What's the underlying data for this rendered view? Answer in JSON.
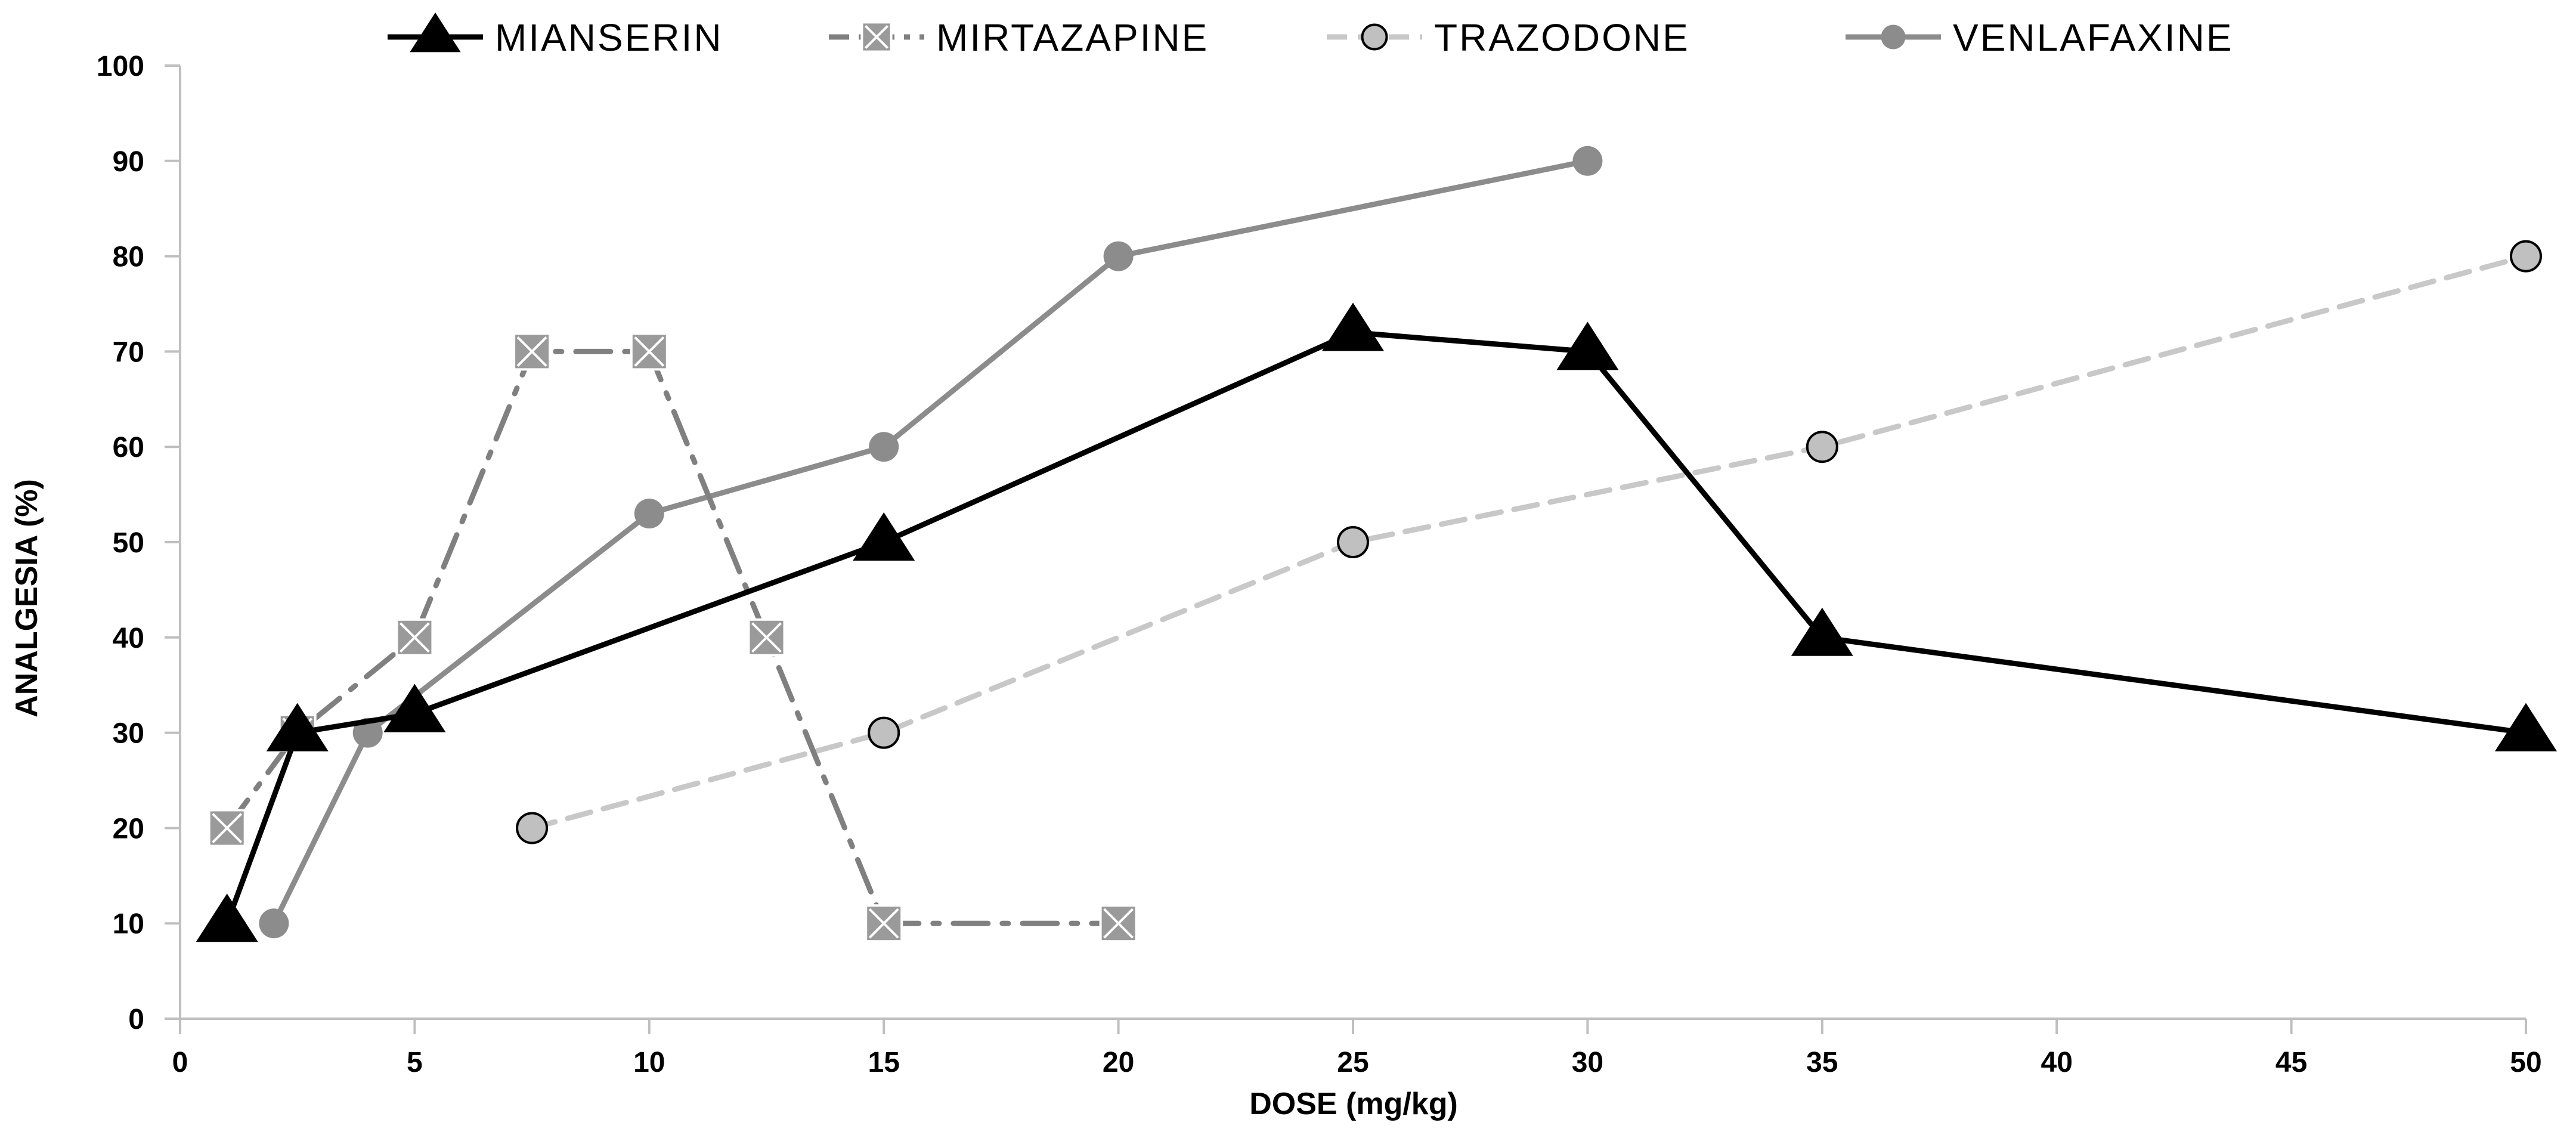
{
  "chart_data": {
    "type": "line",
    "title": "",
    "xlabel": "DOSE (mg/kg)",
    "ylabel": "ANALGESIA (%)",
    "xlim": [
      0,
      50
    ],
    "ylim": [
      0,
      100
    ],
    "x_ticks": [
      0,
      5,
      10,
      15,
      20,
      25,
      30,
      35,
      40,
      45,
      50
    ],
    "y_ticks": [
      0,
      10,
      20,
      30,
      40,
      50,
      60,
      70,
      80,
      90,
      100
    ],
    "grid": false,
    "legend_position": "top",
    "series": [
      {
        "name": "MIANSERIN",
        "color": "#000000",
        "line_style": "solid",
        "marker": "triangle",
        "marker_fill": "#000000",
        "x": [
          1,
          2.5,
          5,
          15,
          25,
          30,
          35,
          50
        ],
        "values": [
          10,
          30,
          32,
          50,
          72,
          70,
          40,
          30
        ]
      },
      {
        "name": "MIRTAZAPINE",
        "color": "#808080",
        "line_style": "dash-dot",
        "marker": "square-x",
        "marker_fill": "#9a9a9a",
        "x": [
          1,
          2.5,
          5,
          7.5,
          10,
          12.5,
          15,
          20
        ],
        "values": [
          20,
          30,
          40,
          70,
          70,
          40,
          10,
          10
        ]
      },
      {
        "name": "TRAZODONE",
        "color": "#c8c8c8",
        "line_style": "dashed",
        "marker": "circle-outline",
        "marker_fill": "#c0c0c0",
        "x": [
          7.5,
          15,
          25,
          35,
          50
        ],
        "values": [
          20,
          30,
          50,
          60,
          80
        ]
      },
      {
        "name": "VENLAFAXINE",
        "color": "#8c8c8c",
        "line_style": "solid",
        "marker": "circle",
        "marker_fill": "#8c8c8c",
        "x": [
          2,
          4,
          10,
          15,
          20,
          30
        ],
        "values": [
          10,
          30,
          53,
          60,
          80,
          90
        ]
      }
    ]
  }
}
